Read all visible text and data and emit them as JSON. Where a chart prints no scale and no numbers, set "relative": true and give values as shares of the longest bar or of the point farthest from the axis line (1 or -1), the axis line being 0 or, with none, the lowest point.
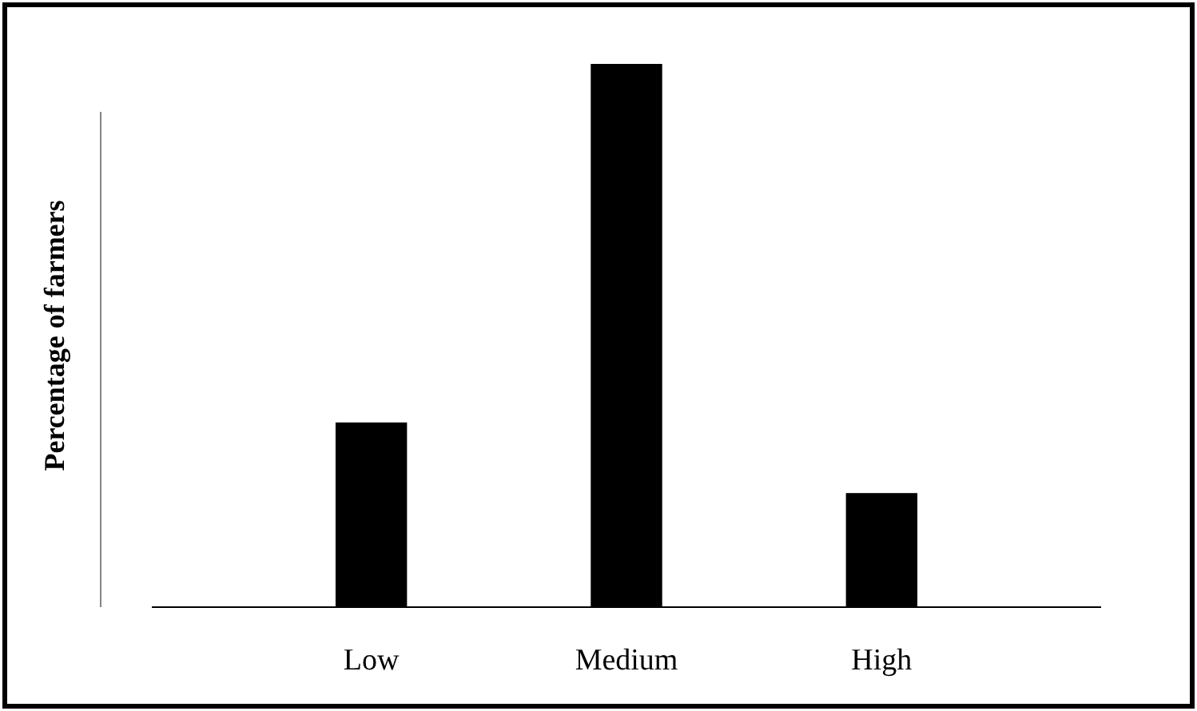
{
  "chart_data": {
    "type": "bar",
    "ylabel": "Percentage of farmers",
    "categories": [
      "Low",
      "Medium",
      "High"
    ],
    "values": [
      0.34,
      1,
      0.21
    ],
    "color": "#000000",
    "relative": true
  }
}
